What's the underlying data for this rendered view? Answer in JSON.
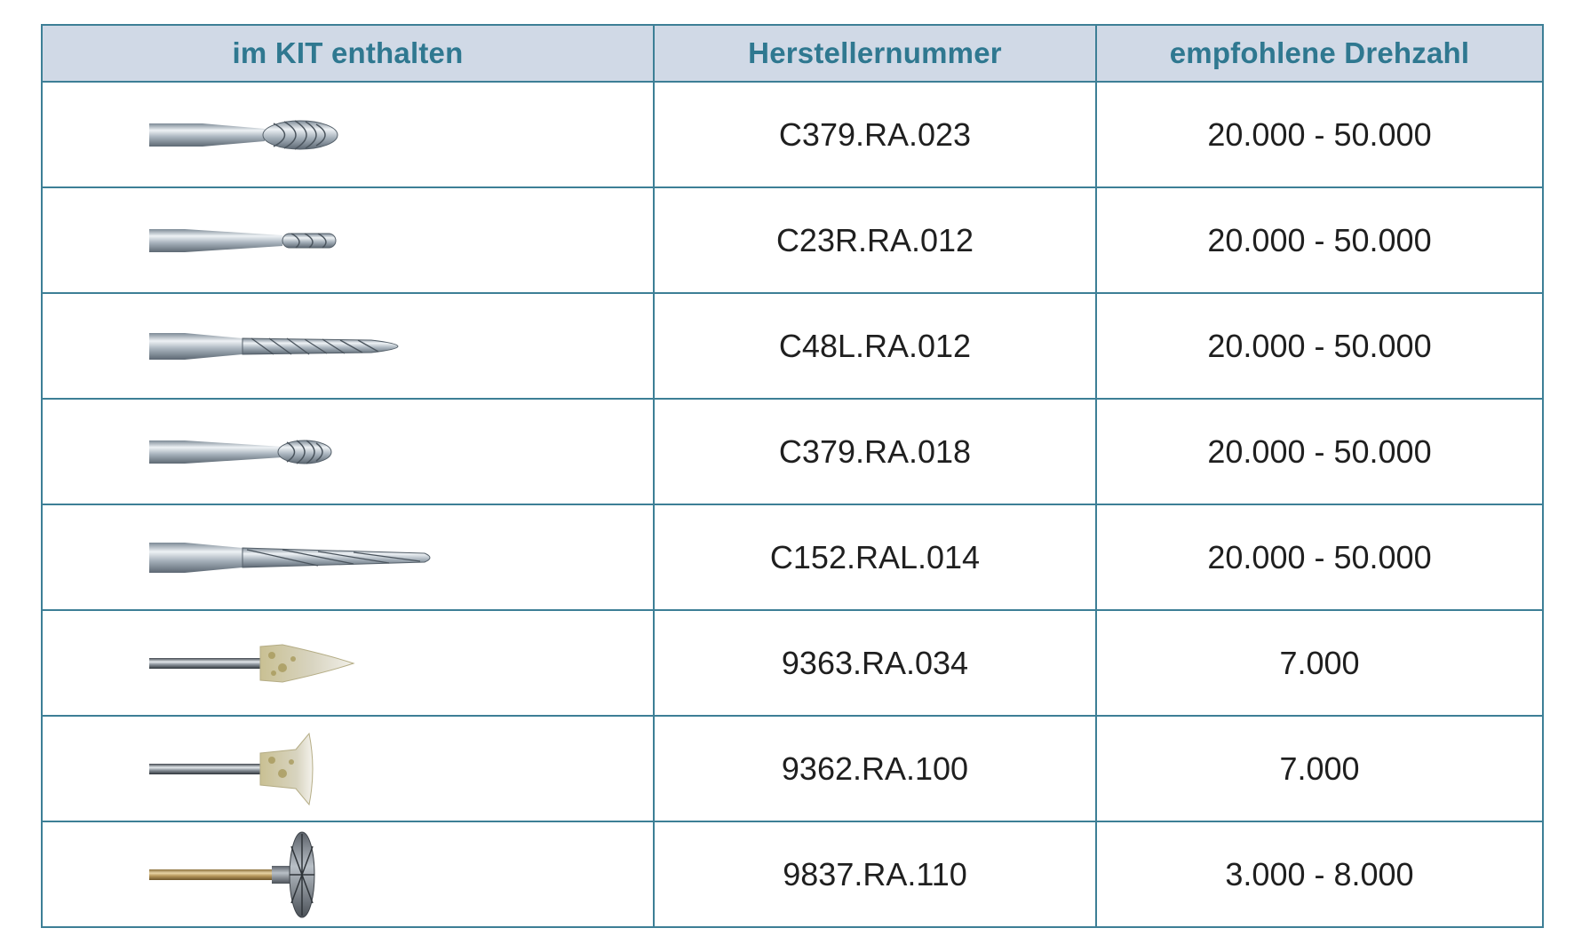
{
  "table": {
    "headers": [
      "im KIT enthalten",
      "Herstellernummer",
      "empfohlene Drehzahl"
    ],
    "rows": [
      {
        "tool_icon": "oval-carbide-bur-icon",
        "part_number": "C379.RA.023",
        "speed": "20.000 - 50.000"
      },
      {
        "tool_icon": "small-round-carbide-bur-icon",
        "part_number": "C23R.RA.012",
        "speed": "20.000 - 50.000"
      },
      {
        "tool_icon": "long-flame-carbide-bur-icon",
        "part_number": "C48L.RA.012",
        "speed": "20.000 - 50.000"
      },
      {
        "tool_icon": "small-oval-carbide-bur-icon",
        "part_number": "C379.RA.018",
        "speed": "20.000 - 50.000"
      },
      {
        "tool_icon": "long-tapered-carbide-bur-icon",
        "part_number": "C152.RAL.014",
        "speed": "20.000 - 50.000"
      },
      {
        "tool_icon": "pointed-polisher-icon",
        "part_number": "9363.RA.034",
        "speed": "7.000"
      },
      {
        "tool_icon": "cup-polisher-icon",
        "part_number": "9362.RA.100",
        "speed": "7.000"
      },
      {
        "tool_icon": "wheel-polisher-icon",
        "part_number": "9837.RA.110",
        "speed": "3.000 - 8.000"
      }
    ]
  },
  "colors": {
    "header_bg": "#d0d9e6",
    "header_text": "#2f7890",
    "border": "#3d7f96"
  }
}
